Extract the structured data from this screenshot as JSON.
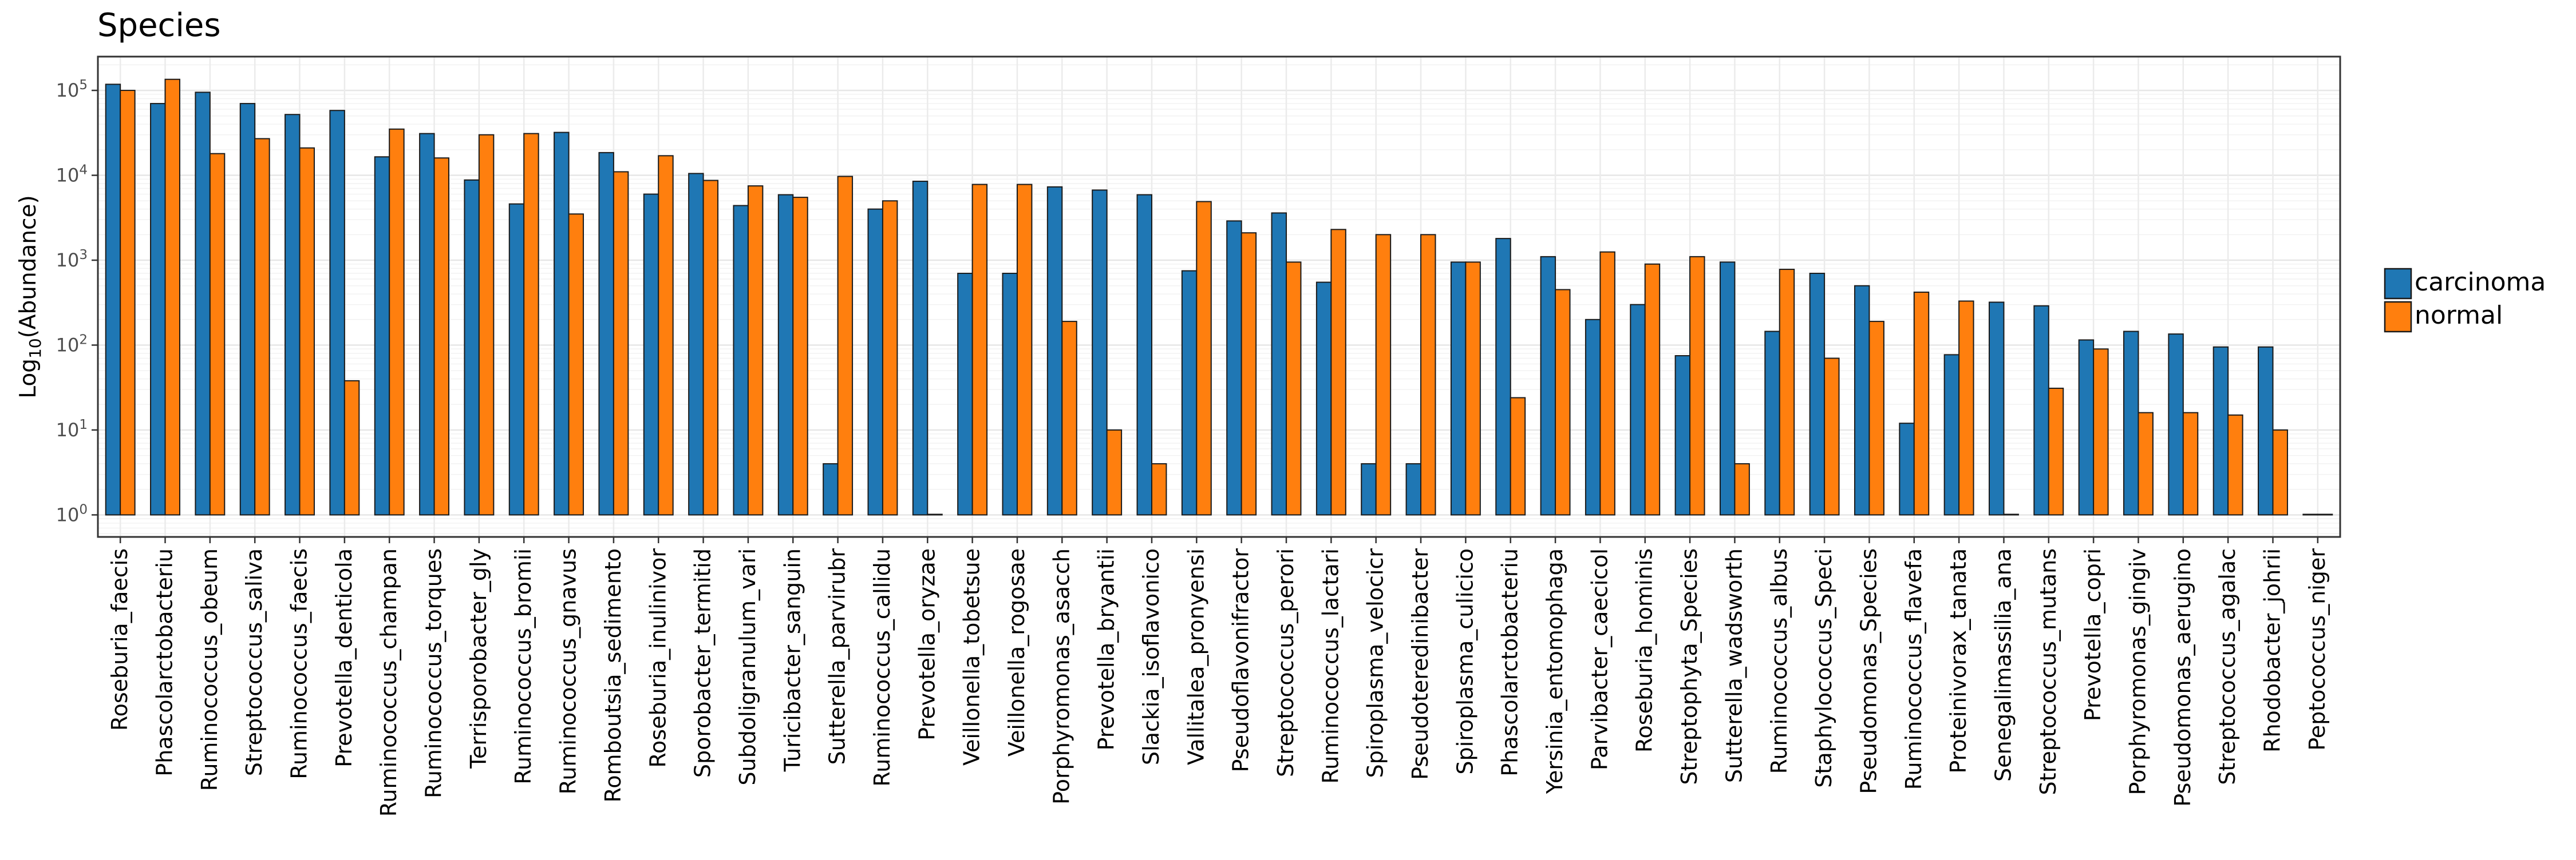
{
  "chart_data": {
    "type": "bar",
    "title": "Species",
    "xlabel": "",
    "ylabel": "Log10(Abundance)",
    "ylabel_base": "Log",
    "ylabel_sub": "10",
    "ylabel_rest": "(Abundance)",
    "y_scale": "log10",
    "ylim": [
      0.55,
      250000
    ],
    "y_ticks": [
      {
        "value": 1,
        "base": "10",
        "exp": "0"
      },
      {
        "value": 10,
        "base": "10",
        "exp": "1"
      },
      {
        "value": 100,
        "base": "10",
        "exp": "2"
      },
      {
        "value": 1000,
        "base": "10",
        "exp": "3"
      },
      {
        "value": 10000,
        "base": "10",
        "exp": "4"
      },
      {
        "value": 100000,
        "base": "10",
        "exp": "5"
      }
    ],
    "grid": true,
    "legend_position": "right",
    "categories": [
      "Roseburia_faecis",
      "Phascolarctobacteriu",
      "Ruminococcus_obeum",
      "Streptococcus_saliva",
      "Ruminococcus_faecis",
      "Prevotella_denticola",
      "Ruminococcus_champan",
      "Ruminococcus_torques",
      "Terrisporobacter_gly",
      "Ruminococcus_bromii",
      "Ruminococcus_gnavus",
      "Romboutsia_sedimento",
      "Roseburia_inulinivor",
      "Sporobacter_termitid",
      "Subdoligranulum_vari",
      "Turicibacter_sanguin",
      "Sutterella_parvirubr",
      "Ruminococcus_callidu",
      "Prevotella_oryzae",
      "Veillonella_tobetsue",
      "Veillonella_rogosae",
      "Porphyromonas_asacch",
      "Prevotella_bryantii",
      "Slackia_isoflavonico",
      "Vallitalea_pronyensi",
      "Pseudoflavonifractor",
      "Streptococcus_perori",
      "Ruminococcus_lactari",
      "Spiroplasma_velocicr",
      "Pseudoteredinibacter",
      "Spiroplasma_culicico",
      "Phascolarctobacteriu",
      "Yersinia_entomophaga",
      "Parvibacter_caecicol",
      "Roseburia_hominis",
      "Streptophyta_Species",
      "Sutterella_wadsworth",
      "Ruminococcus_albus",
      "Staphylococcus_Speci",
      "Pseudomonas_Species",
      "Ruminococcus_flavefa",
      "Proteinivorax_tanata",
      "Senegalimassilia_ana",
      "Streptococcus_mutans",
      "Prevotella_copri",
      "Porphyromonas_gingiv",
      "Pseudomonas_aerugino",
      "Streptococcus_agalac",
      "Rhodobacter_johrii",
      "Peptococcus_niger"
    ],
    "series": [
      {
        "name": "carcinoma",
        "color": "#1F77B4",
        "values": [
          118000,
          70000,
          95000,
          70000,
          52000,
          58000,
          16500,
          31000,
          8800,
          4600,
          32000,
          18500,
          6000,
          10500,
          4400,
          5900,
          4,
          4000,
          8500,
          700,
          700,
          7300,
          6700,
          5900,
          750,
          2900,
          3600,
          550,
          4,
          4,
          950,
          1800,
          1100,
          200,
          300,
          75,
          950,
          145,
          700,
          500,
          12,
          77,
          320,
          290,
          115,
          145,
          135,
          95,
          95,
          1
        ]
      },
      {
        "name": "normal",
        "color": "#FF7F0E",
        "values": [
          100000,
          135000,
          18000,
          27000,
          21000,
          38,
          35000,
          16000,
          30000,
          31000,
          3500,
          11000,
          17000,
          8700,
          7500,
          5500,
          9700,
          5000,
          1,
          7800,
          7800,
          190,
          10,
          4,
          4900,
          2100,
          950,
          2300,
          2000,
          2000,
          950,
          24,
          450,
          1250,
          900,
          1100,
          4,
          780,
          70,
          190,
          420,
          330,
          1,
          31,
          90,
          16,
          16,
          15,
          10,
          1
        ]
      }
    ]
  }
}
